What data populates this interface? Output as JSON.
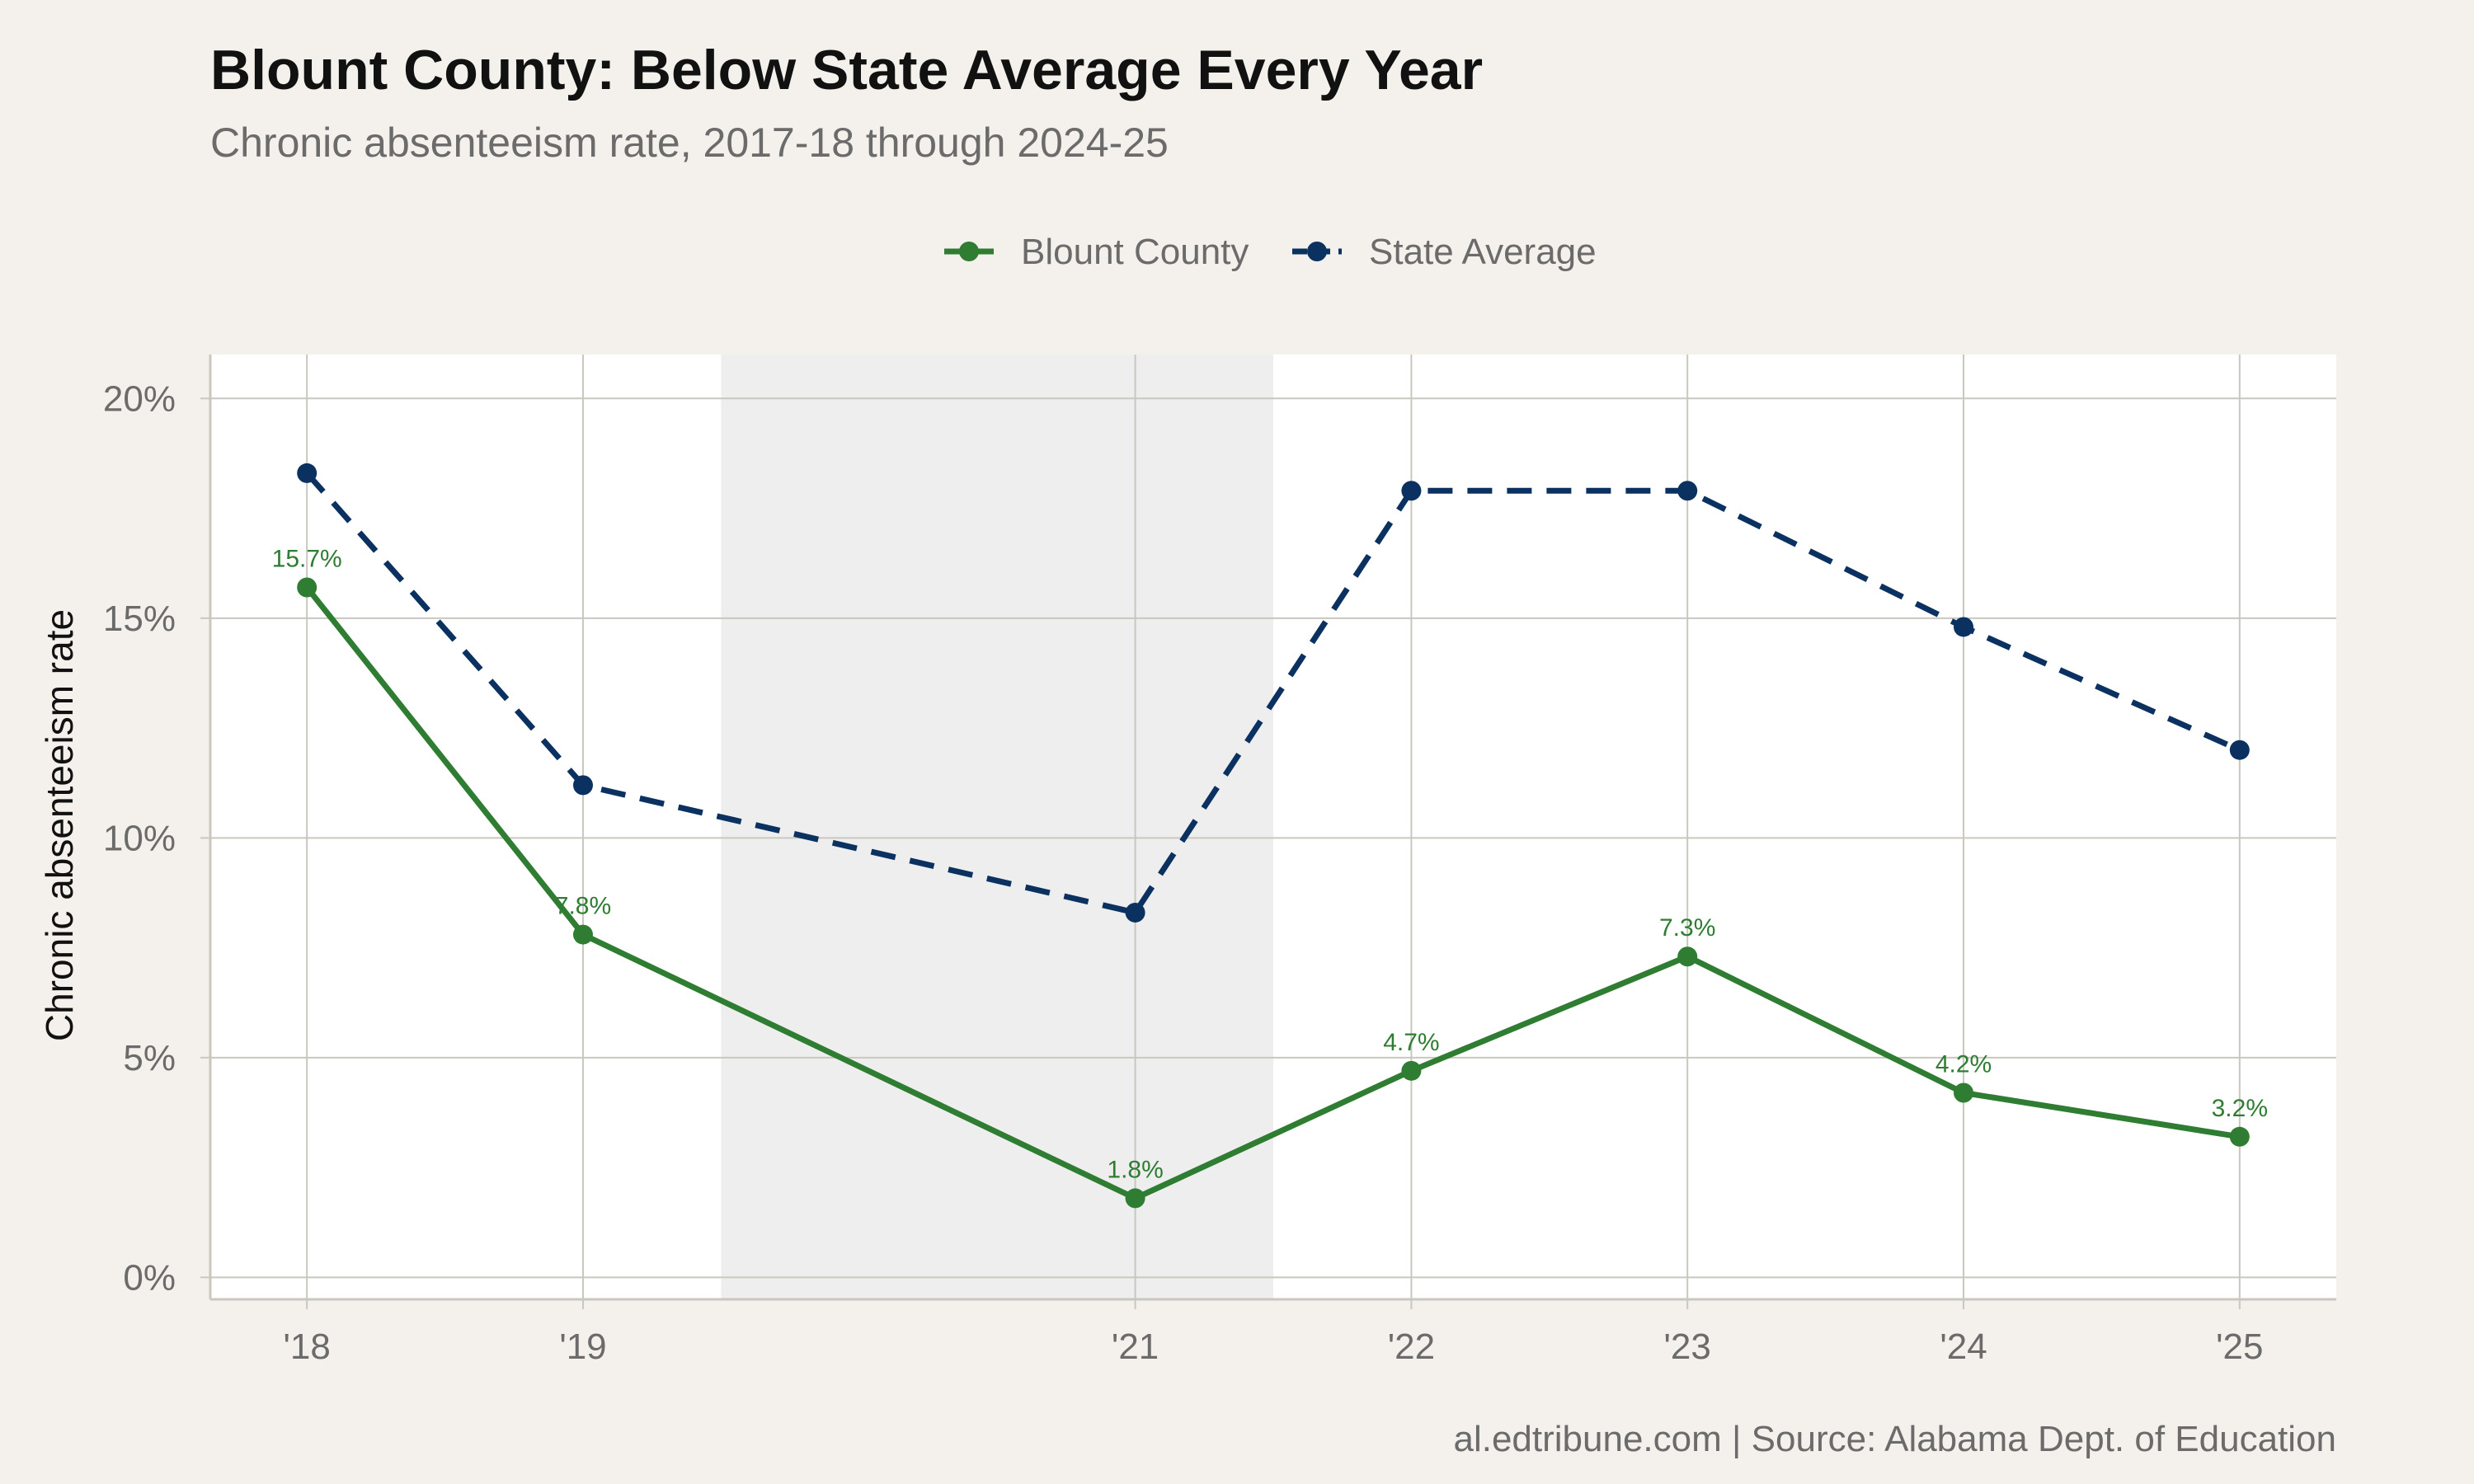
{
  "title": "Blount County: Below State Average Every Year",
  "subtitle": "Chronic absenteeism rate, 2017-18 through 2024-25",
  "caption": "al.edtribune.com | Source: Alabama Dept. of Education",
  "colors": {
    "background": "#f4f1ec",
    "panel": "#ffffff",
    "shade": "#eeeeef",
    "grid": "#c9c7bf",
    "county": "#2e7d32",
    "state": "#0b3161"
  },
  "chart_data": {
    "type": "line",
    "title": "Blount County: Below State Average Every Year",
    "subtitle": "Chronic absenteeism rate, 2017-18 through 2024-25",
    "xlabel": "",
    "ylabel": "Chronic absenteeism rate",
    "x": [
      2018,
      2019,
      2021,
      2022,
      2023,
      2024,
      2025
    ],
    "x_tick_labels": [
      "'18",
      "'19",
      "'21",
      "'22",
      "'23",
      "'24",
      "'25"
    ],
    "xlim": [
      2017.65,
      2025.35
    ],
    "ylim": [
      -0.5,
      21
    ],
    "y_ticks": [
      0,
      5,
      10,
      15,
      20
    ],
    "y_tick_labels": [
      "0%",
      "5%",
      "10%",
      "15%",
      "20%"
    ],
    "grid": true,
    "legend_position": "top",
    "shaded_region": {
      "x_start": 2019.5,
      "x_end": 2021.5
    },
    "series": [
      {
        "name": "Blount County",
        "values": [
          15.7,
          7.8,
          1.8,
          4.7,
          7.3,
          4.2,
          3.2
        ],
        "labels": [
          "15.7%",
          "7.8%",
          "1.8%",
          "4.7%",
          "7.3%",
          "4.2%",
          "3.2%"
        ],
        "line_style": "solid",
        "color": "#2e7d32"
      },
      {
        "name": "State Average",
        "values": [
          18.3,
          11.2,
          8.3,
          17.9,
          17.9,
          14.8,
          12.0
        ],
        "line_style": "dashed",
        "color": "#0b3161"
      }
    ]
  }
}
